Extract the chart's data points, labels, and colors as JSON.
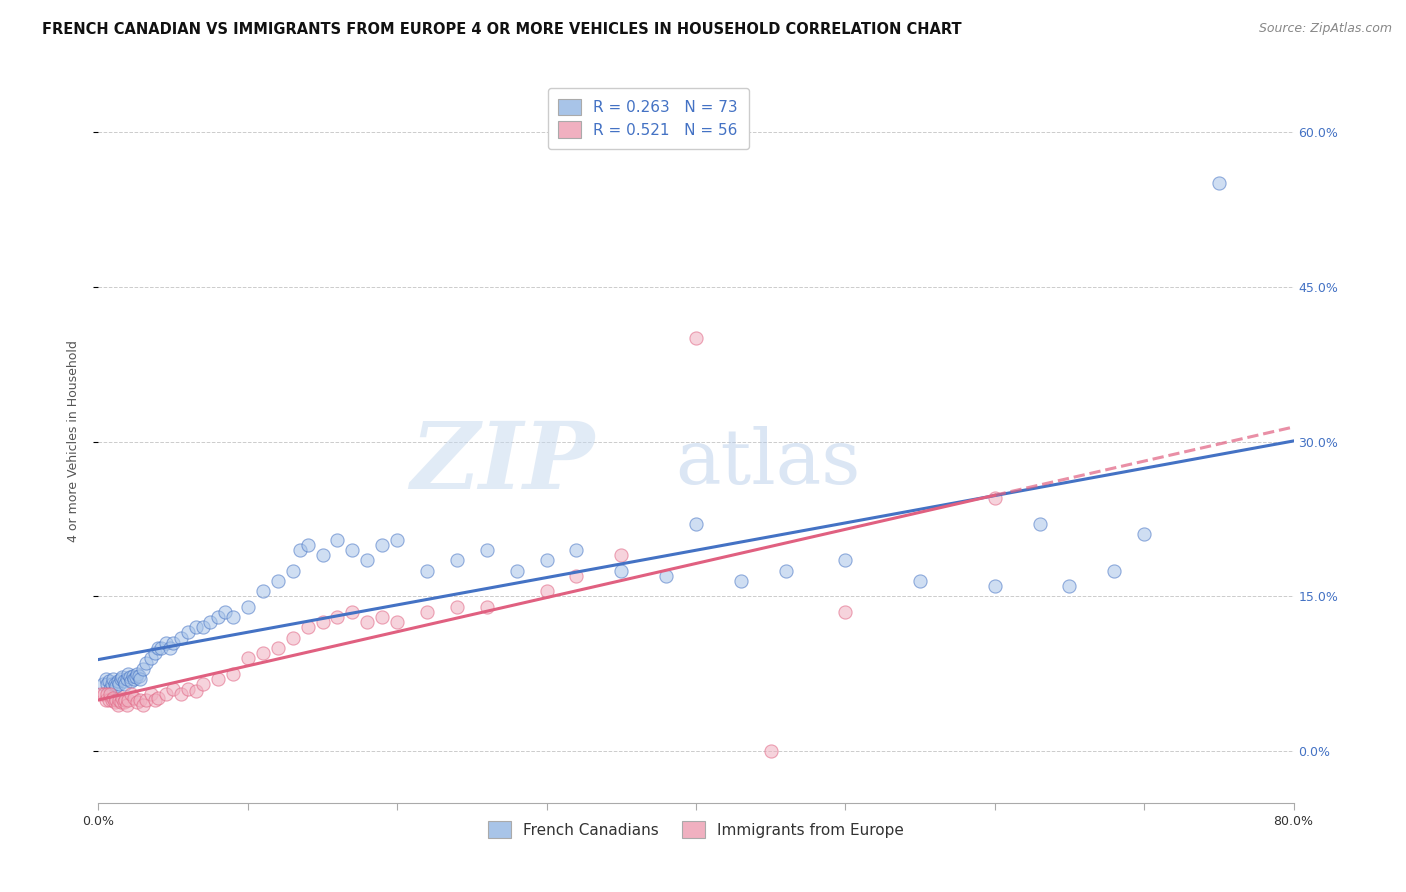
{
  "title": "FRENCH CANADIAN VS IMMIGRANTS FROM EUROPE 4 OR MORE VEHICLES IN HOUSEHOLD CORRELATION CHART",
  "source": "Source: ZipAtlas.com",
  "ylabel": "4 or more Vehicles in Household",
  "xlim": [
    0.0,
    0.8
  ],
  "ylim": [
    -0.05,
    0.65
  ],
  "ytick_positions": [
    0.0,
    0.15,
    0.3,
    0.45,
    0.6
  ],
  "ytick_labels_right": [
    "0.0%",
    "15.0%",
    "30.0%",
    "45.0%",
    "60.0%"
  ],
  "blue_color": "#a8c4e8",
  "pink_color": "#f0b0c0",
  "trendline_blue": "#4472c4",
  "trendline_pink": "#e06080",
  "legend_blue_R": "0.263",
  "legend_blue_N": "73",
  "legend_pink_R": "0.521",
  "legend_pink_N": "56",
  "blue_scatter_x": [
    0.003,
    0.005,
    0.006,
    0.007,
    0.008,
    0.009,
    0.01,
    0.011,
    0.012,
    0.013,
    0.014,
    0.015,
    0.016,
    0.017,
    0.018,
    0.019,
    0.02,
    0.021,
    0.022,
    0.023,
    0.024,
    0.025,
    0.026,
    0.027,
    0.028,
    0.03,
    0.032,
    0.035,
    0.038,
    0.04,
    0.042,
    0.045,
    0.048,
    0.05,
    0.055,
    0.06,
    0.065,
    0.07,
    0.075,
    0.08,
    0.085,
    0.09,
    0.1,
    0.11,
    0.12,
    0.13,
    0.135,
    0.14,
    0.15,
    0.16,
    0.17,
    0.18,
    0.19,
    0.2,
    0.22,
    0.24,
    0.26,
    0.28,
    0.3,
    0.32,
    0.35,
    0.38,
    0.4,
    0.43,
    0.46,
    0.5,
    0.55,
    0.6,
    0.63,
    0.65,
    0.68,
    0.7,
    0.75
  ],
  "blue_scatter_y": [
    0.065,
    0.07,
    0.065,
    0.068,
    0.06,
    0.065,
    0.07,
    0.065,
    0.063,
    0.068,
    0.065,
    0.07,
    0.072,
    0.068,
    0.065,
    0.07,
    0.075,
    0.072,
    0.068,
    0.073,
    0.07,
    0.072,
    0.075,
    0.073,
    0.07,
    0.08,
    0.085,
    0.09,
    0.095,
    0.1,
    0.1,
    0.105,
    0.1,
    0.105,
    0.11,
    0.115,
    0.12,
    0.12,
    0.125,
    0.13,
    0.135,
    0.13,
    0.14,
    0.155,
    0.165,
    0.175,
    0.195,
    0.2,
    0.19,
    0.205,
    0.195,
    0.185,
    0.2,
    0.205,
    0.175,
    0.185,
    0.195,
    0.175,
    0.185,
    0.195,
    0.175,
    0.17,
    0.22,
    0.165,
    0.175,
    0.185,
    0.165,
    0.16,
    0.22,
    0.16,
    0.175,
    0.21,
    0.55
  ],
  "pink_scatter_x": [
    0.002,
    0.004,
    0.005,
    0.006,
    0.007,
    0.008,
    0.009,
    0.01,
    0.011,
    0.012,
    0.013,
    0.014,
    0.015,
    0.016,
    0.017,
    0.018,
    0.019,
    0.02,
    0.022,
    0.024,
    0.026,
    0.028,
    0.03,
    0.032,
    0.035,
    0.038,
    0.04,
    0.045,
    0.05,
    0.055,
    0.06,
    0.065,
    0.07,
    0.08,
    0.09,
    0.1,
    0.11,
    0.12,
    0.13,
    0.14,
    0.15,
    0.16,
    0.17,
    0.18,
    0.19,
    0.2,
    0.22,
    0.24,
    0.26,
    0.3,
    0.32,
    0.35,
    0.4,
    0.45,
    0.5,
    0.6
  ],
  "pink_scatter_y": [
    0.055,
    0.055,
    0.05,
    0.055,
    0.05,
    0.055,
    0.05,
    0.052,
    0.048,
    0.05,
    0.045,
    0.05,
    0.048,
    0.052,
    0.048,
    0.05,
    0.045,
    0.05,
    0.055,
    0.052,
    0.048,
    0.05,
    0.045,
    0.05,
    0.055,
    0.05,
    0.052,
    0.055,
    0.06,
    0.055,
    0.06,
    0.058,
    0.065,
    0.07,
    0.075,
    0.09,
    0.095,
    0.1,
    0.11,
    0.12,
    0.125,
    0.13,
    0.135,
    0.125,
    0.13,
    0.125,
    0.135,
    0.14,
    0.14,
    0.155,
    0.17,
    0.19,
    0.4,
    0.0,
    0.135,
    0.245
  ],
  "watermark_zip": "ZIP",
  "watermark_atlas": "atlas",
  "grid_color": "#cccccc",
  "background_color": "#ffffff",
  "title_fontsize": 10.5,
  "axis_label_fontsize": 9,
  "tick_fontsize": 9,
  "legend_fontsize": 11,
  "source_fontsize": 9,
  "scatter_size": 90,
  "scatter_alpha": 0.55,
  "scatter_edge_alpha": 0.8
}
